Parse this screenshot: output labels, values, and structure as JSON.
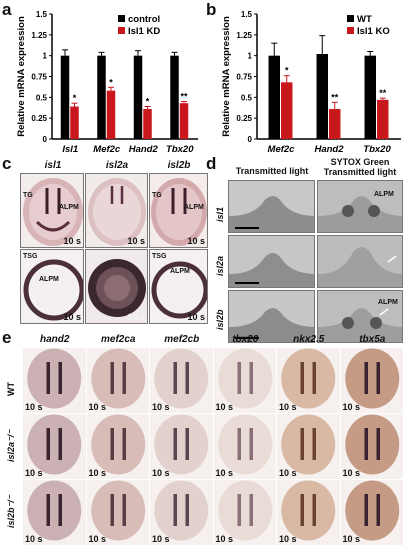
{
  "panels": {
    "a": "a",
    "b": "b",
    "c": "c",
    "d": "d",
    "e": "e"
  },
  "chart_data": [
    {
      "type": "bar",
      "panel": "a",
      "ylabel": "Relative mRNA expression",
      "ylim": [
        0,
        1.5
      ],
      "yticks": [
        "0",
        "0.25",
        "0.5",
        "0.75",
        "1",
        "1.25",
        "1.5"
      ],
      "categories": [
        "Isl1",
        "Mef2c",
        "Hand2",
        "Tbx20"
      ],
      "series": [
        {
          "name": "control",
          "color": "#000000",
          "values": [
            1.0,
            1.0,
            1.0,
            1.0
          ],
          "errors": [
            0.07,
            0.04,
            0.06,
            0.04
          ]
        },
        {
          "name": "Isl1 KD",
          "color": "#c8181e",
          "values": [
            0.39,
            0.58,
            0.36,
            0.43
          ],
          "errors": [
            0.04,
            0.04,
            0.03,
            0.02
          ]
        }
      ],
      "significance": [
        "*",
        "*",
        "*",
        "**"
      ]
    },
    {
      "type": "bar",
      "panel": "b",
      "ylabel": "Relative mRNA expression",
      "ylim": [
        0,
        1.5
      ],
      "yticks": [
        "0",
        "0.25",
        "0.5",
        "0.75",
        "1",
        "1.25",
        "1.5"
      ],
      "categories": [
        "Mef2c",
        "Hand2",
        "Tbx20"
      ],
      "series": [
        {
          "name": "WT",
          "color": "#000000",
          "values": [
            1.0,
            1.02,
            1.0
          ],
          "errors": [
            0.15,
            0.22,
            0.05
          ]
        },
        {
          "name": "Isl1 KO",
          "color": "#c8181e",
          "values": [
            0.68,
            0.36,
            0.47
          ],
          "errors": [
            0.08,
            0.08,
            0.02
          ]
        }
      ],
      "significance": [
        "*",
        "**",
        "**"
      ]
    }
  ],
  "panel_c": {
    "columns": [
      "isl1",
      "isl2a",
      "isl2b"
    ],
    "stage": "10 s",
    "annotations": {
      "tg": "TG",
      "alpm": "ALPM",
      "tsg": "TSG"
    }
  },
  "panel_d": {
    "col1": "Transmitted light",
    "col2_line1": "SYTOX Green",
    "col2_line2": "Transmitted light",
    "rows": [
      "isl1",
      "isl2a",
      "isl2b"
    ],
    "alpm": "ALPM"
  },
  "panel_e": {
    "columns": [
      "hand2",
      "mef2ca",
      "mef2cb",
      "tbx20",
      "nkx2.5",
      "tbx5a"
    ],
    "rows": [
      "WT",
      "isl2a⁻/⁻",
      "isl2b⁻/⁻"
    ],
    "stage": "10 s"
  },
  "colors": {
    "red": "#c8181e",
    "black": "#000000"
  }
}
